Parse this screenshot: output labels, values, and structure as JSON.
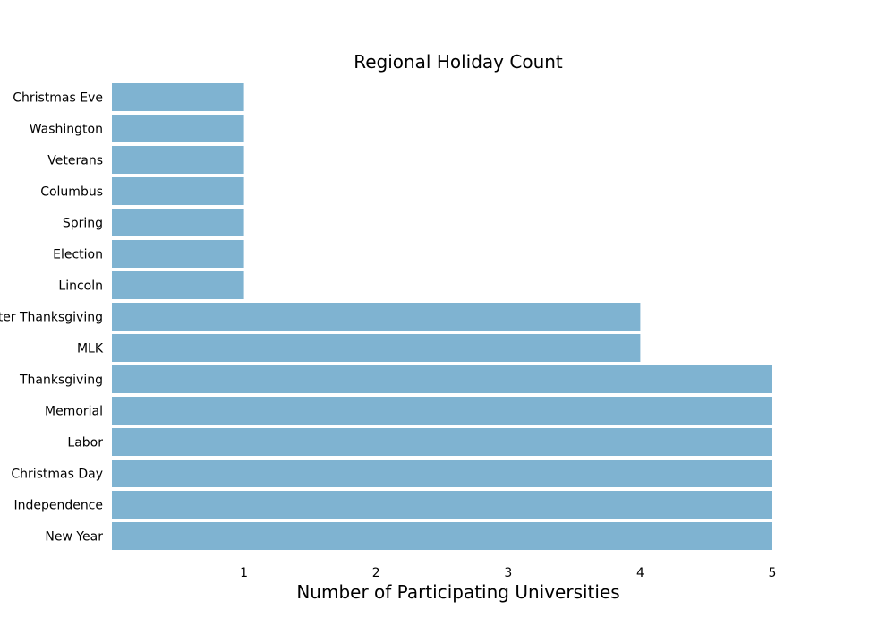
{
  "chart_data": {
    "type": "bar",
    "orientation": "horizontal",
    "title": "Regional Holiday Count",
    "xlabel": "Number of Participating Universities",
    "ylabel": "",
    "xlim": [
      0,
      5.4
    ],
    "xticks": [
      1,
      2,
      3,
      4,
      5
    ],
    "grid": false,
    "legend": "none",
    "bar_color": "#7fb3d1",
    "categories": [
      "Christmas Eve",
      "Washington",
      "Veterans",
      "Columbus",
      "Spring",
      "Election",
      "Lincoln",
      "After Thanksgiving",
      "MLK",
      "Thanksgiving",
      "Memorial",
      "Labor",
      "Christmas Day",
      "Independence",
      "New Year"
    ],
    "values": [
      1,
      1,
      1,
      1,
      1,
      1,
      1,
      4,
      4,
      5,
      5,
      5,
      5,
      5,
      5
    ]
  }
}
